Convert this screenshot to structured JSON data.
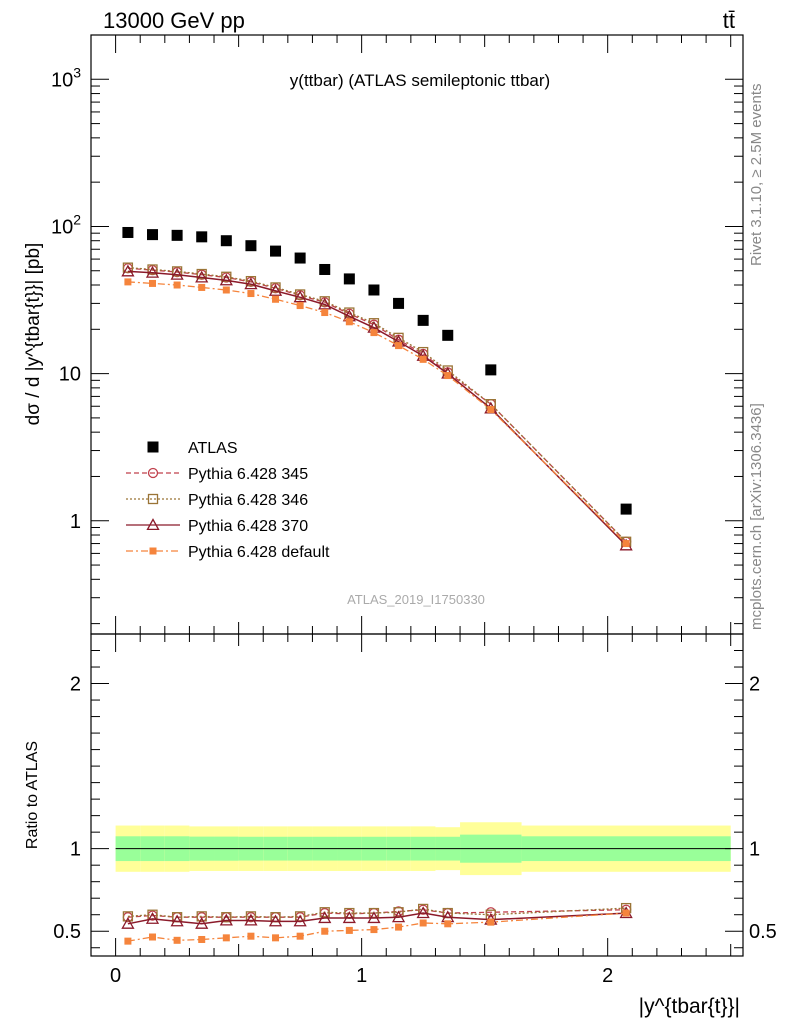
{
  "header": {
    "process": "13000 GeV pp",
    "final_state": "tt̄"
  },
  "side_labels": {
    "rivet": "Rivet 3.1.10, ≥ 2.5M events",
    "mcplots": "mcplots.cern.ch [arXiv:1306.3436]"
  },
  "colors": {
    "atlas": "#000000",
    "p345": "#c0404c",
    "p346": "#9a7436",
    "p370": "#8b1a2a",
    "pdefault": "#f5843c",
    "band_inner": "#99ff99",
    "band_outer": "#ffff99"
  },
  "chart_data": [
    {
      "type": "scatter",
      "title": "y(ttbar) (ATLAS semileptonic ttbar)",
      "watermark": "ATLAS_2019_I1750330",
      "ylabel": "dσ / d |y^{tbar{t}}| [pb]",
      "xlabel": "|y^{tbar{t}}|",
      "yscale": "log",
      "xlim": [
        -0.1,
        2.55
      ],
      "ylim": [
        0.17,
        2000
      ],
      "y_ticks": [
        "1",
        "10",
        "10²",
        "10³"
      ],
      "legend_position": "bottom-left",
      "x": [
        0.05,
        0.15,
        0.25,
        0.35,
        0.45,
        0.55,
        0.65,
        0.75,
        0.85,
        0.95,
        1.05,
        1.15,
        1.25,
        1.35,
        1.525,
        2.075
      ],
      "series": [
        {
          "name": "ATLAS",
          "values": [
            91,
            88,
            87,
            85,
            80,
            74,
            68,
            61,
            51,
            44,
            37,
            30,
            23,
            18.2,
            10.6,
            1.2
          ]
        },
        {
          "name": "Pythia 6.428 345",
          "values": [
            52,
            50.5,
            49,
            47,
            45,
            42,
            38,
            34,
            30.5,
            25.5,
            21.5,
            17,
            13.6,
            10.2,
            6.2,
            0.72
          ]
        },
        {
          "name": "Pythia 6.428 346",
          "values": [
            52.5,
            51,
            49.5,
            47.5,
            45.5,
            42.5,
            38.5,
            34.5,
            31,
            26,
            22,
            17.5,
            14,
            10.5,
            6.2,
            0.72
          ]
        },
        {
          "name": "Pythia 6.428 370",
          "values": [
            49.5,
            48.5,
            47,
            45,
            43,
            40.5,
            36.5,
            33,
            29.5,
            24.5,
            20.5,
            16.5,
            13.2,
            10,
            5.8,
            0.68
          ]
        },
        {
          "name": "Pythia 6.428 default",
          "values": [
            42,
            41,
            40,
            38.5,
            37,
            35,
            32,
            29,
            26,
            22.5,
            19,
            15.5,
            12.5,
            9.7,
            5.7,
            0.7
          ]
        }
      ]
    },
    {
      "type": "scatter",
      "ylabel": "Ratio to ATLAS",
      "xlabel": "|y^{tbar{t}}|",
      "xlim": [
        -0.1,
        2.55
      ],
      "ylim": [
        0.35,
        2.3
      ],
      "y_ticks": [
        "0.5",
        "1",
        "2"
      ],
      "x_ticks": [
        "0",
        "1",
        "2"
      ],
      "x": [
        0.05,
        0.15,
        0.25,
        0.35,
        0.45,
        0.55,
        0.65,
        0.75,
        0.85,
        0.95,
        1.05,
        1.15,
        1.25,
        1.35,
        1.525,
        2.075
      ],
      "bin_edges": [
        0,
        0.1,
        0.2,
        0.3,
        0.4,
        0.5,
        0.6,
        0.7,
        0.8,
        0.9,
        1.0,
        1.1,
        1.2,
        1.3,
        1.4,
        1.65,
        2.5
      ],
      "band_inner_halfwidth": [
        0.075,
        0.075,
        0.075,
        0.073,
        0.073,
        0.072,
        0.072,
        0.072,
        0.072,
        0.072,
        0.072,
        0.072,
        0.072,
        0.072,
        0.085,
        0.075
      ],
      "band_outer_halfwidth": [
        0.14,
        0.14,
        0.14,
        0.135,
        0.135,
        0.135,
        0.135,
        0.135,
        0.135,
        0.135,
        0.135,
        0.135,
        0.135,
        0.13,
        0.16,
        0.14
      ],
      "series": [
        {
          "name": "Pythia 6.428 345",
          "values": [
            0.585,
            0.595,
            0.585,
            0.585,
            0.585,
            0.585,
            0.585,
            0.585,
            0.61,
            0.605,
            0.61,
            0.62,
            0.63,
            0.61,
            0.615,
            0.63
          ]
        },
        {
          "name": "Pythia 6.428 346",
          "values": [
            0.59,
            0.6,
            0.585,
            0.59,
            0.585,
            0.59,
            0.585,
            0.59,
            0.615,
            0.61,
            0.61,
            0.615,
            0.635,
            0.61,
            0.6,
            0.64
          ]
        },
        {
          "name": "Pythia 6.428 370",
          "values": [
            0.545,
            0.575,
            0.56,
            0.545,
            0.565,
            0.565,
            0.56,
            0.56,
            0.58,
            0.58,
            0.58,
            0.585,
            0.61,
            0.585,
            0.57,
            0.61
          ]
        },
        {
          "name": "Pythia 6.428 default",
          "values": [
            0.44,
            0.465,
            0.445,
            0.45,
            0.46,
            0.47,
            0.46,
            0.47,
            0.5,
            0.505,
            0.51,
            0.525,
            0.55,
            0.545,
            0.555,
            0.61
          ]
        }
      ]
    }
  ]
}
